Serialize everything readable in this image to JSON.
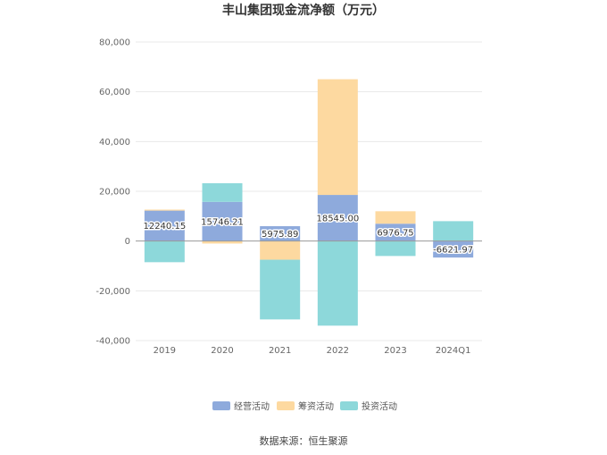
{
  "chart_data": {
    "type": "bar",
    "stacked": true,
    "title": "丰山集团现金流净额（万元）",
    "categories": [
      "2019",
      "2020",
      "2021",
      "2022",
      "2023",
      "2024Q1"
    ],
    "series": [
      {
        "name": "经营活动",
        "color": "#8eaadc",
        "values": [
          12240.15,
          15746.21,
          5975.89,
          18545.0,
          6976.75,
          -6621.97
        ]
      },
      {
        "name": "筹资活动",
        "color": "#fdd9a0",
        "values": [
          400,
          -1000,
          -7500,
          46500,
          5000,
          0
        ]
      },
      {
        "name": "投资活动",
        "color": "#8dd8da",
        "values": [
          -8500,
          7500,
          -24000,
          -34000,
          -6000,
          8000
        ]
      }
    ],
    "data_labels": [
      "12240.15",
      "15746.21",
      "5975.89",
      "18545.00",
      "6976.75",
      "-6621.97"
    ],
    "ylim": [
      -40000,
      80000
    ],
    "yticks": [
      "80,000",
      "60,000",
      "40,000",
      "20,000",
      "0",
      "-20,000",
      "-40,000"
    ],
    "ytick_values": [
      80000,
      60000,
      40000,
      20000,
      0,
      -20000,
      -40000
    ],
    "grid": true,
    "legend_position": "bottom"
  },
  "source": "数据来源：恒生聚源"
}
